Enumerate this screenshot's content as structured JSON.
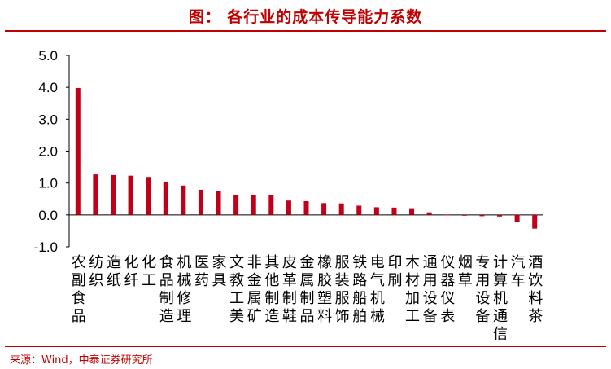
{
  "title": "图：  各行业的成本传导能力系数",
  "source": "来源：Wind，中泰证券研究所",
  "colors": {
    "bar": "#c00018",
    "title": "#c00000",
    "axis": "#000000"
  },
  "chart_data": {
    "type": "bar",
    "title": "图：  各行业的成本传导能力系数",
    "xlabel": "",
    "ylabel": "",
    "ylim": [
      -1.0,
      5.0
    ],
    "yticks": [
      "5.0",
      "4.0",
      "3.0",
      "2.0",
      "1.0",
      "0.0",
      "-1.0"
    ],
    "grid": false,
    "categories": [
      "农副食品",
      "纺织",
      "造纸",
      "化纤",
      "化工",
      "食品制造",
      "机械修理",
      "医药",
      "家具",
      "文教工美",
      "非金属矿",
      "其他制造",
      "皮革制鞋",
      "金属制品",
      "橡胶塑料",
      "服装服饰",
      "铁路船舶",
      "电气机械",
      "印刷",
      "木材加工",
      "通用设备",
      "仪器仪表",
      "烟草",
      "专用设备",
      "计算机通信",
      "汽车",
      "酒饮料茶"
    ],
    "values": [
      3.98,
      1.27,
      1.25,
      1.23,
      1.19,
      1.03,
      0.92,
      0.79,
      0.74,
      0.63,
      0.62,
      0.61,
      0.45,
      0.43,
      0.37,
      0.36,
      0.29,
      0.24,
      0.23,
      0.21,
      0.08,
      0.01,
      -0.01,
      -0.04,
      -0.05,
      -0.21,
      -0.43
    ]
  }
}
